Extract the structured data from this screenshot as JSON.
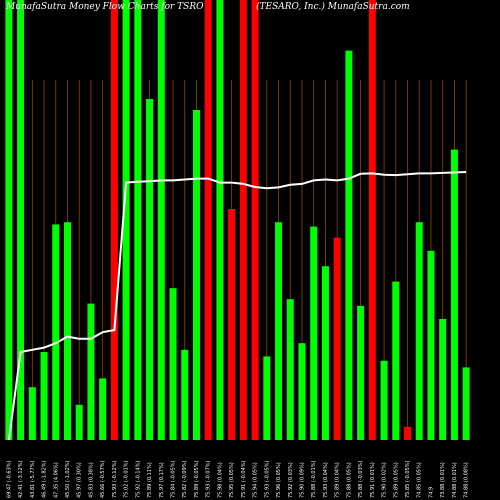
{
  "chart_data": {
    "type": "bar",
    "title": "MunafaSutra  Money Flow  Charts for TSRO",
    "subtitle": "(TESARO, Inc.) MunafaSutra.com",
    "ylim": [
      0,
      100
    ],
    "line_name": "",
    "colors": {
      "up": "#00ff00",
      "down": "#ff0000",
      "line": "#ffffff",
      "vgrid": "#8b4a00",
      "background": "#000000"
    },
    "bars": [
      {
        "label": "69.47 (-0.63%)",
        "value": 100,
        "color": "up"
      },
      {
        "label": "42.41 (-3.12%)",
        "value": 100,
        "color": "up"
      },
      {
        "label": "43.81 (-5.77%)",
        "value": 12,
        "color": "up"
      },
      {
        "label": "46.49 (-1.82%)",
        "value": 20,
        "color": "up"
      },
      {
        "label": "47.35 (4.06%)",
        "value": 49,
        "color": "up"
      },
      {
        "label": "45.50 (-1.02%)",
        "value": 49.5,
        "color": "up"
      },
      {
        "label": "45.97 (0.30%)",
        "value": 8,
        "color": "up"
      },
      {
        "label": "45.83 (0.38%)",
        "value": 31,
        "color": "up"
      },
      {
        "label": "45.66 (-0.57%)",
        "value": 14,
        "color": "up"
      },
      {
        "label": "75.93 (-0.12%)",
        "value": 100,
        "color": "down"
      },
      {
        "label": "75.02 (-0.01%)",
        "value": 100,
        "color": "up"
      },
      {
        "label": "75.92 (-0.14%)",
        "value": 100,
        "color": "up"
      },
      {
        "label": "75.89 (0.11%)",
        "value": 77.5,
        "color": "up"
      },
      {
        "label": "75.97 (0.17%)",
        "value": 100,
        "color": "up"
      },
      {
        "label": "75.84 (-0.05%)",
        "value": 34.5,
        "color": "up"
      },
      {
        "label": "75.82 (-0.09%)",
        "value": 20.5,
        "color": "up"
      },
      {
        "label": "75.89 (-0.05%)",
        "value": 75,
        "color": "up"
      },
      {
        "label": "75.93 (-0.07%)",
        "value": 100,
        "color": "down"
      },
      {
        "label": "75.98 (0.04%)",
        "value": 100,
        "color": "up"
      },
      {
        "label": "75.95 (0.05%)",
        "value": 52.5,
        "color": "down"
      },
      {
        "label": "75.91 (-0.04%)",
        "value": 100,
        "color": "down"
      },
      {
        "label": "75.94 (0.05%)",
        "value": 100,
        "color": "down"
      },
      {
        "label": "75.93 (-0.05%)",
        "value": 19,
        "color": "up"
      },
      {
        "label": "75.96 (0.05%)",
        "value": 49.5,
        "color": "up"
      },
      {
        "label": "75.92 (0.03%)",
        "value": 32,
        "color": "up"
      },
      {
        "label": "75.90 (0.09%)",
        "value": 22,
        "color": "up"
      },
      {
        "label": "75.88 (-0.01%)",
        "value": 48.5,
        "color": "up"
      },
      {
        "label": "75.93 (0.04%)",
        "value": 39.5,
        "color": "up"
      },
      {
        "label": "75.89 (0.04%)",
        "value": 46,
        "color": "down"
      },
      {
        "label": "75.88 (0.05%)",
        "value": 88.5,
        "color": "up"
      },
      {
        "label": "75.88 (-0.03%)",
        "value": 30.5,
        "color": "up"
      },
      {
        "label": "75.91 (0.01%)",
        "value": 100,
        "color": "down"
      },
      {
        "label": "75.90 (0.02%)",
        "value": 18,
        "color": "up"
      },
      {
        "label": "75.89 (0.05%)",
        "value": 36,
        "color": "up"
      },
      {
        "label": "75.85 (-0.05%)",
        "value": 3,
        "color": "down"
      },
      {
        "label": "74.85 (0.05%)",
        "value": 49.5,
        "color": "up"
      },
      {
        "label": "74.9",
        "value": 43,
        "color": "up"
      },
      {
        "label": "73.88 (0.01%)",
        "value": 27.5,
        "color": "up"
      },
      {
        "label": "74.88 (0.01%)",
        "value": 66,
        "color": "up"
      },
      {
        "label": "74.88 (0.08%)",
        "value": 16.5,
        "color": "up"
      }
    ],
    "line_values": [
      0,
      20,
      20.5,
      21,
      22,
      23.5,
      23,
      23,
      24.5,
      25,
      58.5,
      58.7,
      58.8,
      59,
      59,
      59.2,
      59.4,
      59.4,
      58.5,
      58.5,
      58.2,
      57.5,
      57.2,
      57.4,
      58,
      58.2,
      59,
      59.2,
      59,
      59.4,
      60.5,
      60.6,
      60.3,
      60.2,
      60.4,
      60.6,
      60.6,
      60.7,
      60.8,
      60.9
    ]
  }
}
